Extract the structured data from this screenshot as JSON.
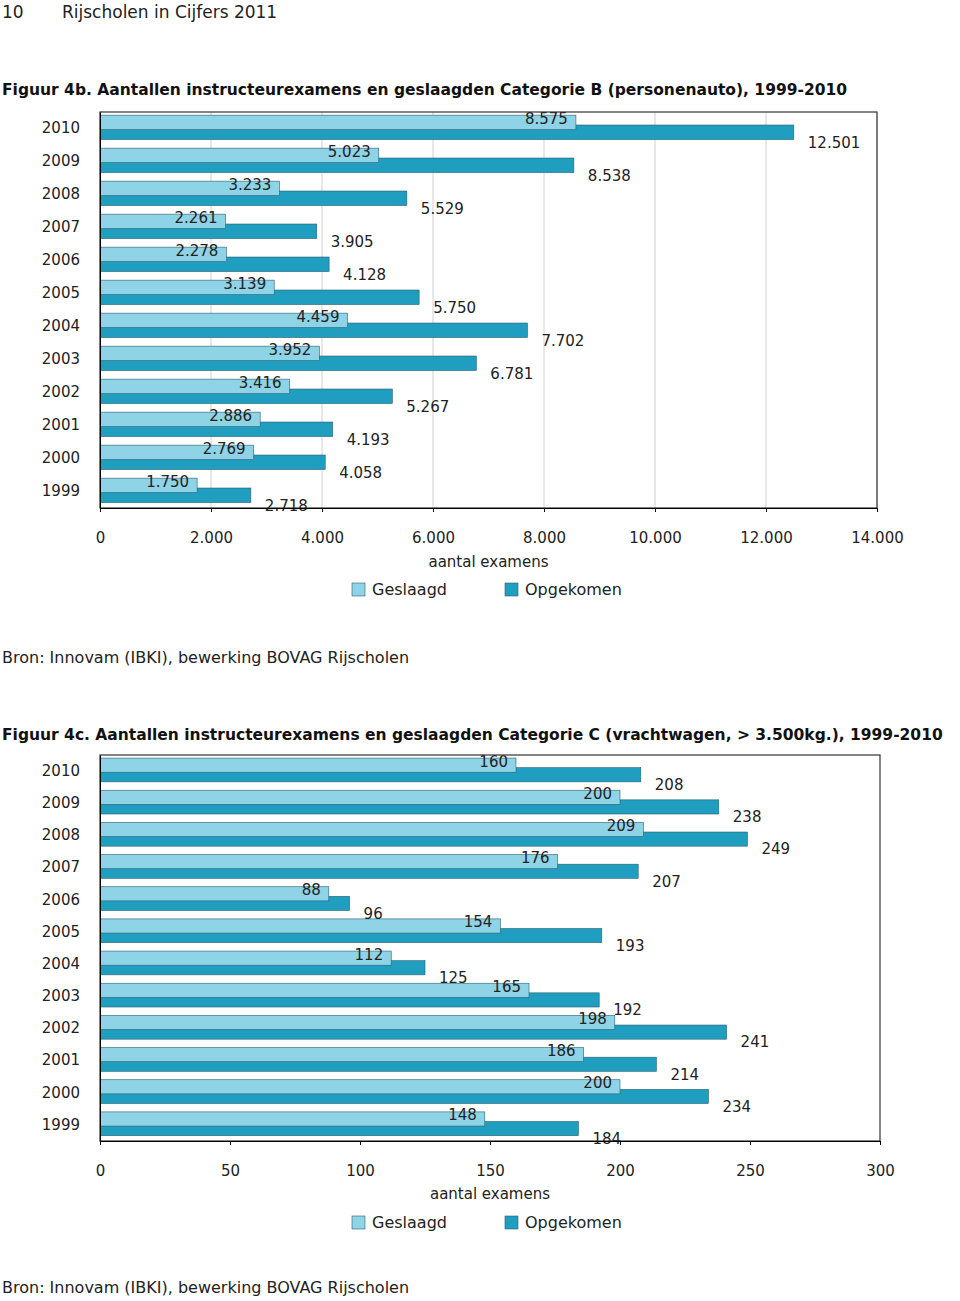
{
  "page_header": {
    "number": "10",
    "title": "Rijscholen in Cijfers 2011"
  },
  "chart_data": [
    {
      "type": "bar",
      "orientation": "horizontal",
      "title": "Figuur 4b. Aantallen instructeurexamens en geslaagden Categorie B (personenauto), 1999-2010",
      "xlabel": "aantal examens",
      "source": "Bron: Innovam (IBKI), bewerking BOVAG Rijscholen",
      "categories": [
        "2010",
        "2009",
        "2008",
        "2007",
        "2006",
        "2005",
        "2004",
        "2003",
        "2002",
        "2001",
        "2000",
        "1999"
      ],
      "series": [
        {
          "name": "Geslaagd",
          "color": "#8fd3e6",
          "values": [
            8575,
            5023,
            3233,
            2261,
            2278,
            3139,
            4459,
            3952,
            3416,
            2886,
            2769,
            1750
          ],
          "value_labels": [
            "8.575",
            "5.023",
            "3.233",
            "2.261",
            "2.278",
            "3.139",
            "4.459",
            "3.952",
            "3.416",
            "2.886",
            "2.769",
            "1.750"
          ]
        },
        {
          "name": "Opgekomen",
          "color": "#1f9ec0",
          "values": [
            12501,
            8538,
            5529,
            3905,
            4128,
            5750,
            7702,
            6781,
            5267,
            4193,
            4058,
            2718
          ],
          "value_labels": [
            "12.501",
            "8.538",
            "5.529",
            "3.905",
            "4.128",
            "5.750",
            "7.702",
            "6.781",
            "5.267",
            "4.193",
            "4.058",
            "2.718"
          ]
        }
      ],
      "xlim": [
        0,
        14000
      ],
      "xticks": [
        0,
        {
          "value": 2000,
          "label": "2.000"
        },
        {
          "value": 4000,
          "label": "4.000"
        },
        {
          "value": 6000,
          "label": "6.000"
        },
        {
          "value": 8000,
          "label": "8.000"
        },
        {
          "value": 10000,
          "label": "10.000"
        },
        {
          "value": 12000,
          "label": "12.000"
        },
        {
          "value": 14000,
          "label": "14.000"
        }
      ],
      "grid": true,
      "legend": "bottom",
      "data_labels": true
    },
    {
      "type": "bar",
      "orientation": "horizontal",
      "title": "Figuur 4c. Aantallen instructeurexamens en geslaagden Categorie C (vrachtwagen, > 3.500kg.), 1999-2010",
      "xlabel": "aantal examens",
      "source": "Bron: Innovam (IBKI), bewerking BOVAG Rijscholen",
      "categories": [
        "2010",
        "2009",
        "2008",
        "2007",
        "2006",
        "2005",
        "2004",
        "2003",
        "2002",
        "2001",
        "2000",
        "1999"
      ],
      "series": [
        {
          "name": "Geslaagd",
          "color": "#8fd3e6",
          "values": [
            160,
            200,
            209,
            176,
            88,
            154,
            112,
            165,
            198,
            186,
            200,
            148
          ]
        },
        {
          "name": "Opgekomen",
          "color": "#1f9ec0",
          "values": [
            208,
            238,
            249,
            207,
            96,
            193,
            125,
            192,
            241,
            214,
            234,
            184
          ]
        }
      ],
      "xlim": [
        0,
        300
      ],
      "xticks": [
        0,
        50,
        100,
        150,
        200,
        250,
        300
      ],
      "grid": false,
      "legend": "bottom",
      "data_labels": true
    }
  ]
}
